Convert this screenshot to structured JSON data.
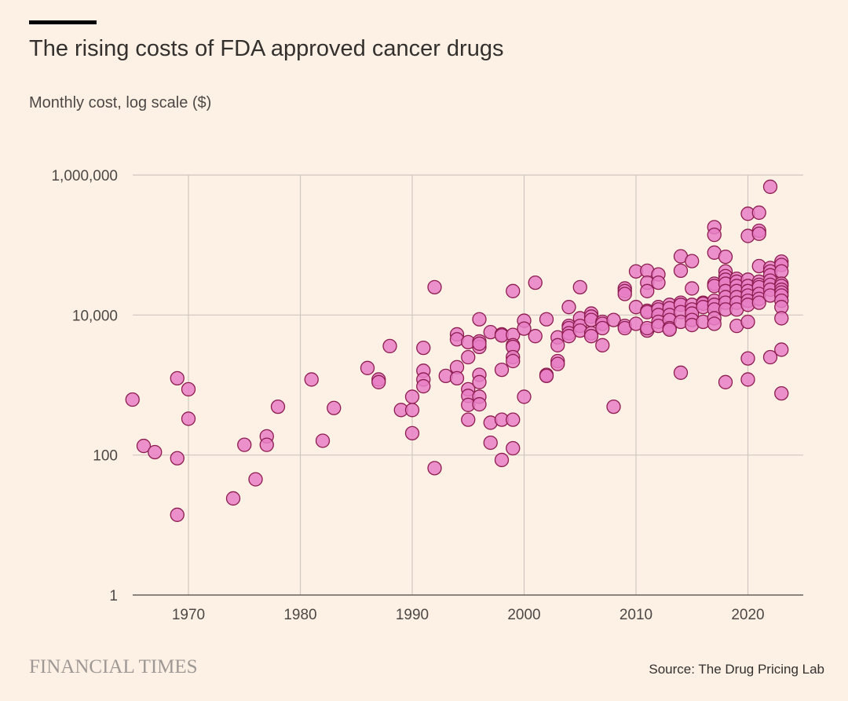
{
  "header": {
    "title": "The rising costs of FDA approved cancer drugs",
    "subtitle": "Monthly cost, log scale ($)"
  },
  "footer": {
    "brand": "FINANCIAL TIMES",
    "source": "Source: The Drug Pricing Lab"
  },
  "colors": {
    "background": "#fdf1e6",
    "point_fill": "#e77fc5",
    "point_stroke": "#8d1c4f",
    "grid": "#cfc7bf",
    "axis": "#66605c"
  },
  "chart_data": {
    "type": "scatter",
    "title": "The rising costs of FDA approved cancer drugs",
    "ylabel": "Monthly cost, log scale ($)",
    "xlabel": "",
    "y_scale": "log",
    "xlim": [
      1965,
      2024
    ],
    "ylim": [
      1,
      1000000
    ],
    "x_ticks": [
      {
        "value": 1970,
        "label": "1970"
      },
      {
        "value": 1980,
        "label": "1980"
      },
      {
        "value": 1990,
        "label": "1990"
      },
      {
        "value": 2000,
        "label": "2000"
      },
      {
        "value": 2010,
        "label": "2010"
      },
      {
        "value": 2020,
        "label": "2020"
      }
    ],
    "y_ticks": [
      {
        "value": 1,
        "label": "1"
      },
      {
        "value": 100,
        "label": "100"
      },
      {
        "value": 10000,
        "label": "10,000"
      },
      {
        "value": 1000000,
        "label": "1,000,000"
      }
    ],
    "grid": "on",
    "legend": "none",
    "points": [
      [
        1965,
        620
      ],
      [
        1966,
        135
      ],
      [
        1967,
        110
      ],
      [
        1969,
        1250
      ],
      [
        1969,
        90
      ],
      [
        1969,
        14
      ],
      [
        1970,
        870
      ],
      [
        1970,
        330
      ],
      [
        1974,
        24
      ],
      [
        1975,
        140
      ],
      [
        1976,
        45
      ],
      [
        1977,
        185
      ],
      [
        1977,
        140
      ],
      [
        1978,
        490
      ],
      [
        1981,
        1200
      ],
      [
        1982,
        160
      ],
      [
        1983,
        470
      ],
      [
        1986,
        1750
      ],
      [
        1987,
        1200
      ],
      [
        1987,
        1100
      ],
      [
        1988,
        3600
      ],
      [
        1989,
        440
      ],
      [
        1990,
        440
      ],
      [
        1990,
        680
      ],
      [
        1990,
        205
      ],
      [
        1991,
        3400
      ],
      [
        1991,
        1600
      ],
      [
        1991,
        1200
      ],
      [
        1991,
        960
      ],
      [
        1992,
        25000
      ],
      [
        1992,
        65
      ],
      [
        1993,
        1350
      ],
      [
        1994,
        5300
      ],
      [
        1994,
        4500
      ],
      [
        1994,
        1800
      ],
      [
        1994,
        1250
      ],
      [
        1995,
        4100
      ],
      [
        1995,
        2500
      ],
      [
        1995,
        870
      ],
      [
        1995,
        700
      ],
      [
        1995,
        520
      ],
      [
        1995,
        320
      ],
      [
        1996,
        8700
      ],
      [
        1996,
        4200
      ],
      [
        1996,
        3500
      ],
      [
        1996,
        3900
      ],
      [
        1996,
        1400
      ],
      [
        1996,
        1100
      ],
      [
        1996,
        680
      ],
      [
        1996,
        530
      ],
      [
        1997,
        5700
      ],
      [
        1997,
        290
      ],
      [
        1997,
        150
      ],
      [
        1998,
        5300
      ],
      [
        1998,
        5100
      ],
      [
        1998,
        1650
      ],
      [
        1998,
        320
      ],
      [
        1998,
        85
      ],
      [
        1999,
        22000
      ],
      [
        1999,
        5200
      ],
      [
        1999,
        3700
      ],
      [
        1999,
        3500
      ],
      [
        1999,
        2500
      ],
      [
        1999,
        2200
      ],
      [
        1999,
        320
      ],
      [
        1999,
        125
      ],
      [
        2000,
        8300
      ],
      [
        2000,
        6400
      ],
      [
        2000,
        680
      ],
      [
        2001,
        29000
      ],
      [
        2001,
        5000
      ],
      [
        2002,
        8700
      ],
      [
        2002,
        1400
      ],
      [
        2002,
        1350
      ],
      [
        2003,
        4800
      ],
      [
        2003,
        3700
      ],
      [
        2003,
        2200
      ],
      [
        2003,
        2000
      ],
      [
        2004,
        13000
      ],
      [
        2004,
        7000
      ],
      [
        2004,
        6500
      ],
      [
        2004,
        5500
      ],
      [
        2004,
        5000
      ],
      [
        2005,
        25000
      ],
      [
        2005,
        9000
      ],
      [
        2005,
        7000
      ],
      [
        2005,
        6000
      ],
      [
        2006,
        10500
      ],
      [
        2006,
        9500
      ],
      [
        2006,
        8500
      ],
      [
        2006,
        5500
      ],
      [
        2006,
        5000
      ],
      [
        2007,
        8000
      ],
      [
        2007,
        7500
      ],
      [
        2007,
        6500
      ],
      [
        2007,
        3700
      ],
      [
        2008,
        8500
      ],
      [
        2008,
        490
      ],
      [
        2009,
        24000
      ],
      [
        2009,
        22000
      ],
      [
        2009,
        20000
      ],
      [
        2009,
        7000
      ],
      [
        2009,
        6500
      ],
      [
        2010,
        42000
      ],
      [
        2010,
        13000
      ],
      [
        2010,
        7500
      ],
      [
        2011,
        43000
      ],
      [
        2011,
        29000
      ],
      [
        2011,
        22000
      ],
      [
        2011,
        11500
      ],
      [
        2011,
        11000
      ],
      [
        2011,
        6000
      ],
      [
        2011,
        6500
      ],
      [
        2012,
        38000
      ],
      [
        2012,
        29000
      ],
      [
        2012,
        13000
      ],
      [
        2012,
        12000
      ],
      [
        2012,
        10000
      ],
      [
        2012,
        8000
      ],
      [
        2012,
        7000
      ],
      [
        2013,
        14000
      ],
      [
        2013,
        12500
      ],
      [
        2013,
        10000
      ],
      [
        2013,
        8500
      ],
      [
        2013,
        6500
      ],
      [
        2013,
        6200
      ],
      [
        2014,
        69000
      ],
      [
        2014,
        43000
      ],
      [
        2014,
        15000
      ],
      [
        2014,
        14000
      ],
      [
        2014,
        11000
      ],
      [
        2014,
        8000
      ],
      [
        2014,
        1500
      ],
      [
        2015,
        59000
      ],
      [
        2015,
        24000
      ],
      [
        2015,
        14000
      ],
      [
        2015,
        12000
      ],
      [
        2015,
        10500
      ],
      [
        2015,
        8500
      ],
      [
        2015,
        7200
      ],
      [
        2016,
        15000
      ],
      [
        2016,
        14500
      ],
      [
        2016,
        13000
      ],
      [
        2016,
        8000
      ],
      [
        2017,
        180000
      ],
      [
        2017,
        140000
      ],
      [
        2017,
        78000
      ],
      [
        2017,
        28000
      ],
      [
        2017,
        26000
      ],
      [
        2017,
        16000
      ],
      [
        2017,
        14000
      ],
      [
        2017,
        12000
      ],
      [
        2017,
        9000
      ],
      [
        2017,
        7500
      ],
      [
        2018,
        68000
      ],
      [
        2018,
        42000
      ],
      [
        2018,
        36000
      ],
      [
        2018,
        32000
      ],
      [
        2018,
        28000
      ],
      [
        2018,
        22000
      ],
      [
        2018,
        18000
      ],
      [
        2018,
        15000
      ],
      [
        2018,
        12000
      ],
      [
        2018,
        1100
      ],
      [
        2019,
        33000
      ],
      [
        2019,
        30000
      ],
      [
        2019,
        26000
      ],
      [
        2019,
        22000
      ],
      [
        2019,
        18000
      ],
      [
        2019,
        15000
      ],
      [
        2019,
        12000
      ],
      [
        2019,
        7000
      ],
      [
        2020,
        280000
      ],
      [
        2020,
        135000
      ],
      [
        2020,
        32000
      ],
      [
        2020,
        26000
      ],
      [
        2020,
        22000
      ],
      [
        2020,
        19000
      ],
      [
        2020,
        16000
      ],
      [
        2020,
        14000
      ],
      [
        2020,
        8000
      ],
      [
        2020,
        2400
      ],
      [
        2020,
        1200
      ],
      [
        2021,
        290000
      ],
      [
        2021,
        160000
      ],
      [
        2021,
        145000
      ],
      [
        2021,
        50000
      ],
      [
        2021,
        30000
      ],
      [
        2021,
        27000
      ],
      [
        2021,
        25000
      ],
      [
        2021,
        20000
      ],
      [
        2021,
        17000
      ],
      [
        2021,
        15000
      ],
      [
        2022,
        680000
      ],
      [
        2022,
        47000
      ],
      [
        2022,
        42000
      ],
      [
        2022,
        37000
      ],
      [
        2022,
        31000
      ],
      [
        2022,
        27000
      ],
      [
        2022,
        23000
      ],
      [
        2022,
        19000
      ],
      [
        2022,
        2500
      ],
      [
        2023,
        58000
      ],
      [
        2023,
        52000
      ],
      [
        2023,
        42000
      ],
      [
        2023,
        28000
      ],
      [
        2023,
        26000
      ],
      [
        2023,
        23000
      ],
      [
        2023,
        21000
      ],
      [
        2023,
        19000
      ],
      [
        2023,
        16000
      ],
      [
        2023,
        13000
      ],
      [
        2023,
        9000
      ],
      [
        2023,
        3200
      ],
      [
        2023,
        760
      ]
    ]
  }
}
